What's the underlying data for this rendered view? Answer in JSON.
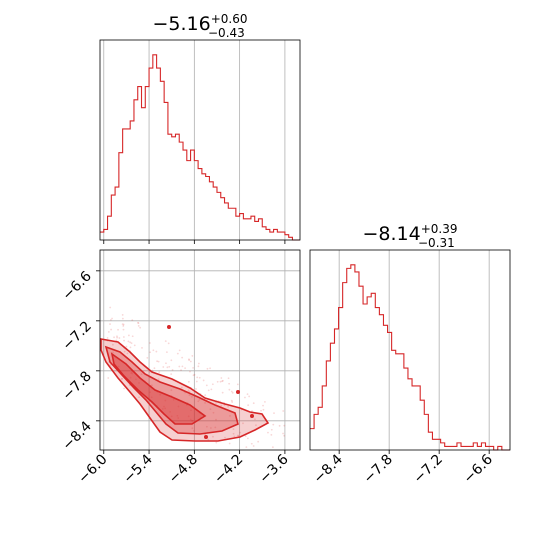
{
  "chart_data": {
    "type": "corner",
    "color": "#d62728",
    "params": [
      {
        "median": "5.16",
        "sign": "−",
        "plus": "+0.60",
        "minus": "−0.43"
      },
      {
        "median": "8.14",
        "sign": "−",
        "plus": "+0.39",
        "minus": "−0.31"
      }
    ],
    "x1_range": [
      -6.05,
      -3.4
    ],
    "x2_range": [
      -8.75,
      -6.35
    ],
    "x1_ticks": [
      {
        "value": -6.0,
        "label": "−6.0"
      },
      {
        "value": -5.4,
        "label": "−5.4"
      },
      {
        "value": -4.8,
        "label": "−4.8"
      },
      {
        "value": -4.2,
        "label": "−4.2"
      },
      {
        "value": -3.6,
        "label": "−3.6"
      }
    ],
    "x2_ticks": [
      {
        "value": -8.4,
        "label": "−8.4"
      },
      {
        "value": -7.8,
        "label": "−7.8"
      },
      {
        "value": -7.2,
        "label": "−7.2"
      },
      {
        "value": -6.6,
        "label": "−6.6"
      }
    ],
    "hist1_counts": [
      3,
      4,
      9,
      17,
      20,
      33,
      42,
      42,
      45,
      53,
      58,
      50,
      58,
      65,
      70,
      65,
      60,
      52,
      40,
      39,
      40,
      37,
      34,
      30,
      34,
      30,
      27,
      25,
      24,
      22,
      20,
      18,
      16,
      14,
      12,
      12,
      9,
      10,
      8,
      8,
      9,
      7,
      8,
      5,
      4,
      3,
      4,
      3,
      3,
      2,
      1,
      0,
      0
    ],
    "hist2_counts": [
      6,
      10,
      12,
      18,
      25,
      30,
      34,
      40,
      47,
      51,
      52,
      50,
      46,
      41,
      43,
      44,
      40,
      38,
      35,
      33,
      28,
      27,
      27,
      23,
      20,
      18,
      18,
      14,
      10,
      5,
      3,
      3,
      2,
      1,
      1,
      1,
      2,
      1,
      1,
      1,
      2,
      1,
      2,
      1,
      1,
      0,
      1,
      0,
      0
    ]
  }
}
